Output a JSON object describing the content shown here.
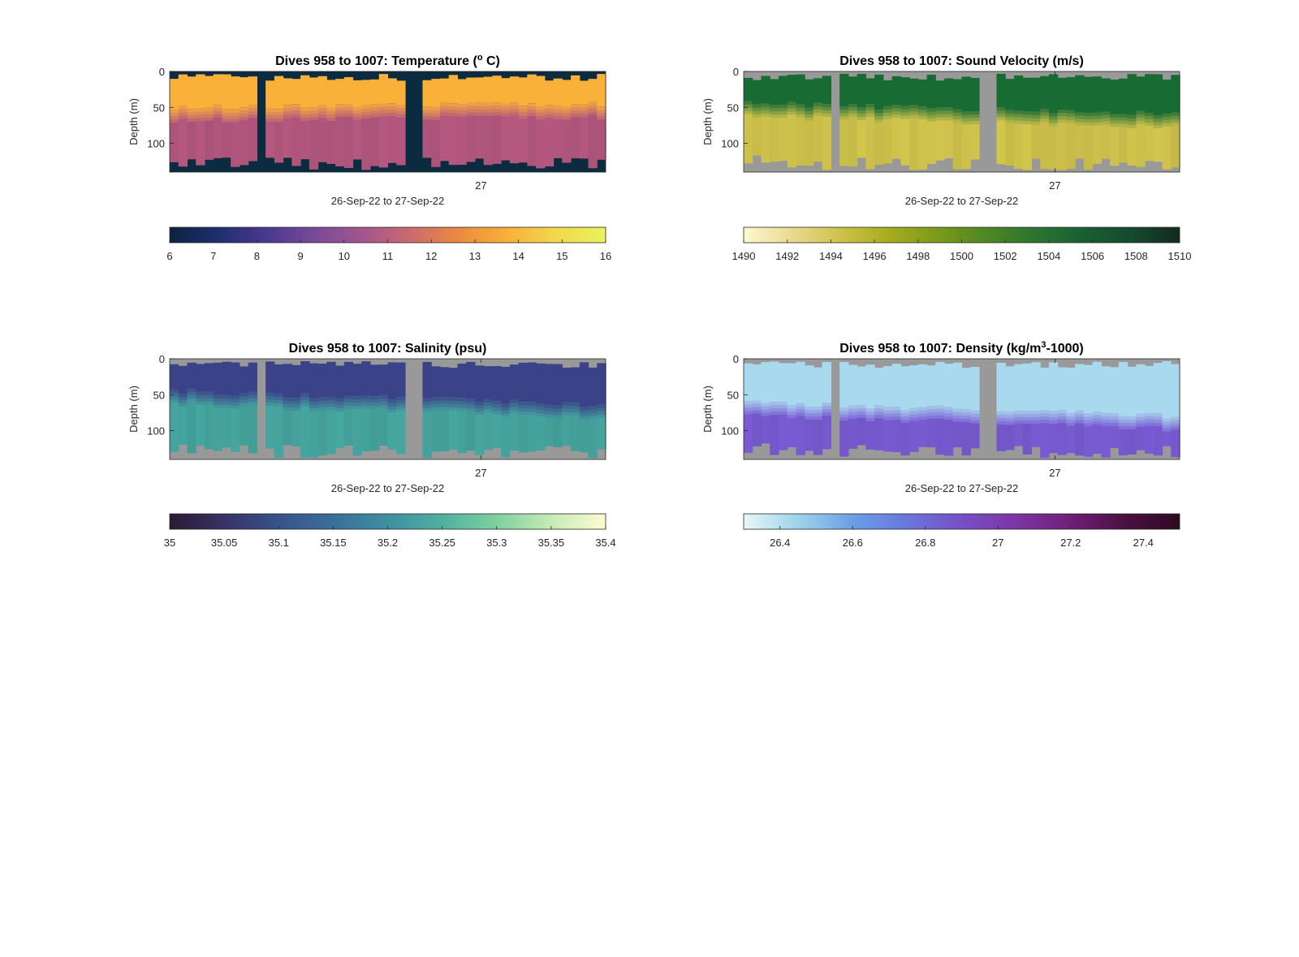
{
  "chart_data": [
    {
      "type": "heatmap",
      "title_pre": "Dives 958 to 1007: Temperature (",
      "title_sup": "o",
      "title_post": " C)",
      "ylabel": "Depth (m)",
      "xlabel": "26-Sep-22 to 27-Sep-22",
      "x_tick": "27",
      "y_ticks": [
        0,
        50,
        100
      ],
      "ylim": [
        0,
        140
      ],
      "background": "#0b2b40",
      "gaps": [
        0.2,
        0.55
      ],
      "mixed_depth": [
        50,
        45
      ],
      "colorbar": {
        "min": 6,
        "max": 16,
        "ticks": [
          "6",
          "7",
          "8",
          "9",
          "10",
          "11",
          "12",
          "13",
          "14",
          "15",
          "16"
        ],
        "stops": [
          "#0b2340",
          "#1f2f6e",
          "#4a3890",
          "#7a4a9a",
          "#a4558f",
          "#cc6b6d",
          "#ec8b3e",
          "#f9b13a",
          "#f3d84d",
          "#e9f25d"
        ]
      },
      "upper_color": "#f9b13a",
      "lower_color": "#b5587f"
    },
    {
      "type": "heatmap",
      "title_pre": "Dives 958 to 1007: Sound Velocity (m/s)",
      "title_sup": "",
      "title_post": "",
      "ylabel": "Depth (m)",
      "xlabel": "26-Sep-22 to 27-Sep-22",
      "x_tick": "27",
      "y_ticks": [
        0,
        50,
        100
      ],
      "ylim": [
        0,
        140
      ],
      "background": "#999999",
      "gaps": [
        0.2,
        0.55
      ],
      "mixed_depth": [
        45,
        60
      ],
      "colorbar": {
        "min": 1490,
        "max": 1510,
        "ticks": [
          "1490",
          "1492",
          "1494",
          "1496",
          "1498",
          "1500",
          "1502",
          "1504",
          "1506",
          "1508",
          "1510"
        ],
        "stops": [
          "#fdf9cf",
          "#e9d98f",
          "#cfc14a",
          "#a8ab1f",
          "#7c9a1a",
          "#4f8722",
          "#2d7430",
          "#1a5f32",
          "#164a2e",
          "#132a1e"
        ]
      },
      "upper_color": "#196b34",
      "lower_color": "#d2c54d"
    },
    {
      "type": "heatmap",
      "title_pre": "Dives 958 to 1007: Salinity (psu)",
      "title_sup": "",
      "title_post": "",
      "ylabel": "Depth (m)",
      "xlabel": "26-Sep-22 to 27-Sep-22",
      "x_tick": "27",
      "y_ticks": [
        0,
        50,
        100
      ],
      "ylim": [
        0,
        140
      ],
      "background": "#999999",
      "gaps": [
        0.2,
        0.55
      ],
      "mixed_depth": [
        45,
        65
      ],
      "colorbar": {
        "min": 35,
        "max": 35.4,
        "ticks": [
          "35",
          "35.05",
          "35.1",
          "35.15",
          "35.2",
          "35.25",
          "35.3",
          "35.35",
          "35.4"
        ],
        "stops": [
          "#2b1a33",
          "#383266",
          "#38528d",
          "#3a6f9a",
          "#3f8fa0",
          "#4fb0a0",
          "#7fd09f",
          "#c5ebb5",
          "#fdfbd0"
        ]
      },
      "upper_color": "#3a4388",
      "lower_color": "#46a6a0"
    },
    {
      "type": "heatmap",
      "title_pre": "Dives 958 to 1007: Density (kg/m",
      "title_sup": "3",
      "title_post": "-1000)",
      "ylabel": "Depth (m)",
      "xlabel": "26-Sep-22 to 27-Sep-22",
      "x_tick": "27",
      "y_ticks": [
        0,
        50,
        100
      ],
      "ylim": [
        0,
        140
      ],
      "background": "#999999",
      "gaps": [
        0.2,
        0.55
      ],
      "mixed_depth": [
        60,
        80
      ],
      "colorbar": {
        "min": 26.3,
        "max": 27.5,
        "ticks": [
          "26.4",
          "26.6",
          "26.8",
          "27",
          "27.2",
          "27.4"
        ],
        "tick_values": [
          26.4,
          26.6,
          26.8,
          27.0,
          27.2,
          27.4
        ],
        "stops": [
          "#e8f6f8",
          "#9fd3ea",
          "#6a9fe6",
          "#6a76dc",
          "#7650c6",
          "#7d35a3",
          "#6e1f78",
          "#4a1042",
          "#2e0a22"
        ]
      },
      "upper_color": "#a9d9ee",
      "lower_color": "#7a5bd4"
    }
  ]
}
